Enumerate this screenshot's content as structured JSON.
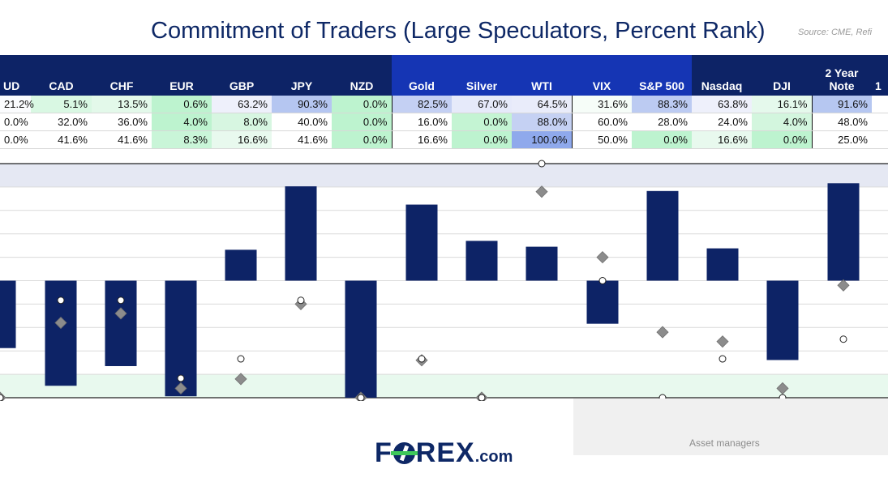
{
  "title": "Commitment of Traders (Large Speculators, Percent Rank)",
  "source": "Source: CME, Refi",
  "table": {
    "headers": [
      "UD",
      "CAD",
      "CHF",
      "EUR",
      "GBP",
      "JPY",
      "NZD",
      "Gold",
      "Silver",
      "WTI",
      "VIX",
      "S&P 500",
      "Nasdaq",
      "DJI",
      "2 Year\nNote",
      "1"
    ],
    "rows": [
      [
        "21.2%",
        "5.1%",
        "13.5%",
        "0.6%",
        "63.2%",
        "90.3%",
        "0.0%",
        "82.5%",
        "67.0%",
        "64.5%",
        "31.6%",
        "88.3%",
        "63.8%",
        "16.1%",
        "91.6%",
        ""
      ],
      [
        "0.0%",
        "32.0%",
        "36.0%",
        "4.0%",
        "8.0%",
        "40.0%",
        "0.0%",
        "16.0%",
        "0.0%",
        "88.0%",
        "60.0%",
        "28.0%",
        "24.0%",
        "4.0%",
        "48.0%",
        ""
      ],
      [
        "0.0%",
        "41.6%",
        "41.6%",
        "8.3%",
        "16.6%",
        "41.6%",
        "0.0%",
        "16.6%",
        "0.0%",
        "100.0%",
        "50.0%",
        "0.0%",
        "16.6%",
        "0.0%",
        "25.0%",
        ""
      ]
    ],
    "cell_colors": [
      [
        "#fbfcfe",
        "#d9f8e3",
        "#e3f9ea",
        "#bdf3cf",
        "#eef0fb",
        "#b5c6f1",
        "#bdf3cf",
        "#c4d0f3",
        "#e6eafa",
        "#e9ecfa",
        "#f6fdf8",
        "#bccbf2",
        "#eef0fb",
        "#e5f9ec",
        "#b6c7f1",
        "#ffffff"
      ],
      [
        "#ffffff",
        "#ffffff",
        "#ffffff",
        "#bdf3cf",
        "#d7f6e1",
        "#ffffff",
        "#bdf3cf",
        "#ffffff",
        "#c4f4d3",
        "#c5d1f3",
        "#ffffff",
        "#ffffff",
        "#ffffff",
        "#d3f6de",
        "#ffffff",
        "#ffffff"
      ],
      [
        "#ffffff",
        "#ffffff",
        "#ffffff",
        "#c9f5d8",
        "#e8f9ee",
        "#ffffff",
        "#bdf3cf",
        "#ffffff",
        "#bdf3cf",
        "#8fa9ec",
        "#ffffff",
        "#bdf3cf",
        "#e8f9ee",
        "#bdf3cf",
        "#ffffff",
        "#ffffff"
      ]
    ]
  },
  "chart_data": {
    "type": "bar",
    "categories": [
      "UD",
      "CAD",
      "CHF",
      "EUR",
      "GBP",
      "JPY",
      "NZD",
      "Gold",
      "Silver",
      "WTI",
      "VIX",
      "S&P 500",
      "Nasdaq",
      "DJI",
      "2 Year\nNote"
    ],
    "series": [
      {
        "values": [
          -28.8,
          -44.9,
          -36.5,
          -49.4,
          13.2,
          40.3,
          -50.0,
          32.5,
          17.0,
          14.5,
          -18.4,
          38.3,
          13.8,
          -33.9,
          41.6
        ]
      },
      {
        "values": [
          -50.0,
          -18.0,
          -14.0,
          -46.0,
          -42.0,
          -10.0,
          -50.0,
          -34.0,
          -50.0,
          38.0,
          10.0,
          -22.0,
          -26.0,
          -46.0,
          -2.0
        ]
      },
      {
        "values": [
          -50.0,
          -8.4,
          -8.4,
          -41.7,
          -33.4,
          -8.4,
          -50.0,
          -33.4,
          -50.0,
          50.0,
          0.0,
          -50.0,
          -33.4,
          -50.0,
          -25.0
        ]
      }
    ],
    "ylim": [
      -50,
      50
    ],
    "grid": true,
    "colors": {
      "bar": "#0d2366",
      "diamond": "#8c8c8c",
      "circle": "#ffffff",
      "band_top": "#e5e8f3",
      "band_bottom": "#e8f9ee"
    }
  },
  "footer": {
    "group_label": "Asset managers",
    "logo_main": "F",
    "logo_rest": "REX",
    "logo_suffix": ".com"
  }
}
